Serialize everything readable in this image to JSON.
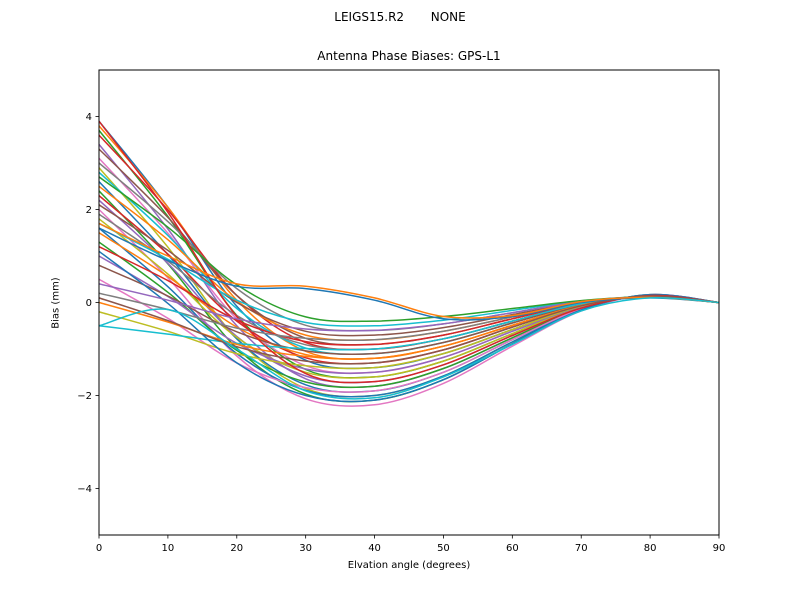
{
  "figure": {
    "suptitle": "LEIGS15.R2       NONE",
    "title": "Antenna Phase Biases: GPS-L1",
    "xlabel": "Elvation angle (degrees)",
    "ylabel": "Bias (mm)"
  },
  "colors": {
    "background": "#ffffff",
    "axis": "#000000",
    "tick_text": "#000000"
  },
  "chart_data": {
    "type": "line",
    "suptitle": "LEIGS15.R2       NONE",
    "title": "Antenna Phase Biases: GPS-L1",
    "xlabel": "Elvation angle (degrees)",
    "ylabel": "Bias (mm)",
    "xlim": [
      0,
      90
    ],
    "ylim": [
      -5,
      5
    ],
    "xticks": [
      0,
      10,
      20,
      30,
      40,
      50,
      60,
      70,
      80,
      90
    ],
    "yticks": [
      -4,
      -2,
      0,
      2,
      4
    ],
    "ytick_labels": [
      "−4",
      "−2",
      "0",
      "2",
      "4"
    ],
    "grid": false,
    "legend": null,
    "line_width": 1.5,
    "x": [
      0,
      10,
      20,
      30,
      40,
      50,
      60,
      70,
      80,
      90
    ],
    "series": [
      {
        "color": "#1f77b4",
        "values": [
          3.9,
          2.05,
          -0.08,
          -1.24,
          -1.4,
          -1.1,
          -0.58,
          -0.08,
          0.15,
          0
        ]
      },
      {
        "color": "#ff7f0e",
        "values": [
          3.8,
          2.05,
          0.05,
          -1.05,
          -1.2,
          -0.94,
          -0.49,
          -0.06,
          0.14,
          0
        ]
      },
      {
        "color": "#2ca02c",
        "values": [
          3.7,
          1.85,
          -0.28,
          -1.44,
          -1.6,
          -1.26,
          -0.67,
          -0.1,
          0.15,
          0
        ]
      },
      {
        "color": "#d62728",
        "values": [
          3.6,
          1.99,
          0.15,
          -0.86,
          -1.0,
          -0.78,
          -0.4,
          -0.03,
          0.13,
          0
        ]
      },
      {
        "color": "#9467bd",
        "values": [
          3.4,
          1.58,
          -0.5,
          -1.64,
          -1.8,
          -1.42,
          -0.76,
          -0.13,
          0.16,
          0
        ]
      },
      {
        "color": "#8c564b",
        "values": [
          3.3,
          1.83,
          0.15,
          -0.77,
          -0.9,
          -0.7,
          -0.35,
          -0.02,
          0.13,
          0
        ]
      },
      {
        "color": "#e377c2",
        "values": [
          3.1,
          1.49,
          -0.35,
          -1.36,
          -1.5,
          -1.18,
          -0.62,
          -0.09,
          0.15,
          0
        ]
      },
      {
        "color": "#7f7f7f",
        "values": [
          3.0,
          1.74,
          0.3,
          -0.49,
          -0.6,
          -0.46,
          -0.22,
          0.02,
          0.12,
          0
        ]
      },
      {
        "color": "#bcbd22",
        "values": [
          2.9,
          1.19,
          -0.78,
          -1.85,
          -2.0,
          -1.58,
          -0.85,
          -0.15,
          0.16,
          0
        ]
      },
      {
        "color": "#17becf",
        "values": [
          2.8,
          1.44,
          -0.13,
          -0.98,
          -1.1,
          -0.86,
          -0.44,
          -0.04,
          0.14,
          0
        ]
      },
      {
        "color": "#1f77b4",
        "values": [
          2.6,
          1.03,
          -0.78,
          -1.77,
          -1.9,
          -1.5,
          -0.8,
          -0.14,
          0.16,
          0
        ]
      },
      {
        "color": "#ff7f0e",
        "values": [
          2.5,
          1.35,
          0.03,
          -0.7,
          -0.8,
          -0.62,
          -0.31,
          -0.01,
          0.13,
          0
        ]
      },
      {
        "color": "#2ca02c",
        "values": [
          2.4,
          0.83,
          -0.98,
          -1.97,
          -2.1,
          -1.66,
          -0.89,
          -0.16,
          0.17,
          0
        ]
      },
      {
        "color": "#d62728",
        "values": [
          2.3,
          1.04,
          -0.4,
          -1.19,
          -1.3,
          -1.02,
          -0.53,
          -0.07,
          0.14,
          0
        ]
      },
      {
        "color": "#9467bd",
        "values": [
          2.2,
          0.84,
          -0.73,
          -1.58,
          -1.7,
          -1.34,
          -0.71,
          -0.12,
          0.15,
          0
        ]
      },
      {
        "color": "#8c564b",
        "values": [
          2.1,
          1.12,
          0.0,
          -0.62,
          -0.7,
          -0.54,
          -0.26,
          0.0,
          0.12,
          0
        ]
      },
      {
        "color": "#e377c2",
        "values": [
          2.0,
          0.53,
          -1.15,
          -2.07,
          -2.2,
          -1.74,
          -0.94,
          -0.18,
          0.17,
          0
        ]
      },
      {
        "color": "#7f7f7f",
        "values": [
          1.9,
          0.89,
          -0.28,
          -0.91,
          -1.0,
          -0.78,
          -0.4,
          -0.03,
          0.13,
          0
        ]
      },
      {
        "color": "#bcbd22",
        "values": [
          1.8,
          0.61,
          -0.75,
          -1.5,
          -1.6,
          -1.26,
          -0.67,
          -0.1,
          0.15,
          0
        ]
      },
      {
        "color": "#17becf",
        "values": [
          1.7,
          0.93,
          0.05,
          -0.43,
          -0.5,
          -0.38,
          -0.17,
          0.03,
          0.12,
          0
        ]
      },
      {
        "color": "#1f77b4",
        "values": [
          1.6,
          0.34,
          -1.1,
          -1.89,
          -2.0,
          -1.58,
          -0.85,
          -0.15,
          0.16,
          0
        ]
      },
      {
        "color": "#ff7f0e",
        "values": [
          1.5,
          0.56,
          -0.53,
          -1.12,
          -1.2,
          -0.94,
          -0.49,
          -0.06,
          0.14,
          0
        ]
      },
      {
        "color": "#2ca02c",
        "values": [
          1.3,
          0.22,
          -1.03,
          -1.71,
          -1.8,
          -1.42,
          -0.76,
          -0.13,
          0.16,
          0
        ]
      },
      {
        "color": "#d62728",
        "values": [
          1.2,
          0.47,
          -0.38,
          -0.84,
          -0.9,
          -0.7,
          -0.35,
          -0.02,
          0.13,
          0
        ]
      },
      {
        "color": "#9467bd",
        "values": [
          1.0,
          0.13,
          -0.88,
          -1.43,
          -1.5,
          -1.18,
          -0.62,
          -0.09,
          0.15,
          0
        ]
      },
      {
        "color": "#8c564b",
        "values": [
          0.8,
          0.14,
          -0.63,
          -1.04,
          -1.1,
          -0.86,
          -0.44,
          -0.04,
          0.14,
          0
        ]
      },
      {
        "color": "#e377c2",
        "values": [
          0.5,
          -0.34,
          -1.3,
          -1.83,
          -1.9,
          -1.5,
          -0.8,
          -0.14,
          0.16,
          0
        ]
      },
      {
        "color": "#7f7f7f",
        "values": [
          0.2,
          -0.15,
          -0.55,
          -0.77,
          -0.8,
          -0.62,
          -0.31,
          -0.01,
          0.13,
          0
        ]
      },
      {
        "color": "#bcbd22",
        "values": [
          -0.2,
          -0.62,
          -1.1,
          -1.36,
          -1.4,
          -1.1,
          -0.58,
          -0.08,
          0.15,
          0
        ]
      },
      {
        "color": "#17becf",
        "values": [
          -0.5,
          -0.68,
          -0.88,
          -0.99,
          -1.0,
          -0.78,
          -0.4,
          -0.03,
          0.13,
          0
        ]
      },
      {
        "color": "#1f77b4",
        "values": [
          1.1,
          -0.02,
          -1.3,
          -2.0,
          -2.1,
          -1.66,
          -0.89,
          -0.16,
          0.17,
          0
        ]
      },
      {
        "color": "#ff7f0e",
        "values": [
          0.0,
          -0.42,
          -0.9,
          -1.16,
          -1.2,
          -0.94,
          -0.49,
          -0.06,
          0.14,
          0
        ]
      },
      {
        "color": "#2ca02c",
        "values": [
          2.7,
          1.62,
          0.38,
          -0.31,
          -0.4,
          -0.3,
          -0.13,
          0.04,
          0.12,
          0
        ]
      },
      {
        "color": "#d62728",
        "values": [
          3.9,
          1.94,
          -0.3,
          -1.53,
          -1.7,
          -1.34,
          -0.71,
          -0.12,
          0.15,
          0
        ]
      },
      {
        "color": "#9467bd",
        "values": [
          0.4,
          0.05,
          -0.35,
          -0.57,
          -0.6,
          -0.46,
          -0.22,
          0.02,
          0.12,
          0
        ]
      },
      {
        "color": "#8c564b",
        "values": [
          0.1,
          -0.39,
          -0.95,
          -1.26,
          -1.3,
          -1.02,
          -0.53,
          -0.07,
          0.14,
          0
        ]
      },
      {
        "color": "#1f77b4",
        "values": [
          1.6,
          0.9,
          0.35,
          0.3,
          0.05,
          -0.35,
          -0.3,
          0.0,
          0.1,
          0
        ]
      },
      {
        "color": "#ff7f0e",
        "values": [
          1.7,
          1.0,
          0.4,
          0.35,
          0.1,
          -0.3,
          -0.28,
          0.02,
          0.11,
          0
        ]
      },
      {
        "color": "#17becf",
        "values": [
          -0.5,
          -0.15,
          -1.0,
          -1.9,
          -2.05,
          -1.6,
          -0.9,
          -0.18,
          0.1,
          0
        ]
      }
    ]
  }
}
